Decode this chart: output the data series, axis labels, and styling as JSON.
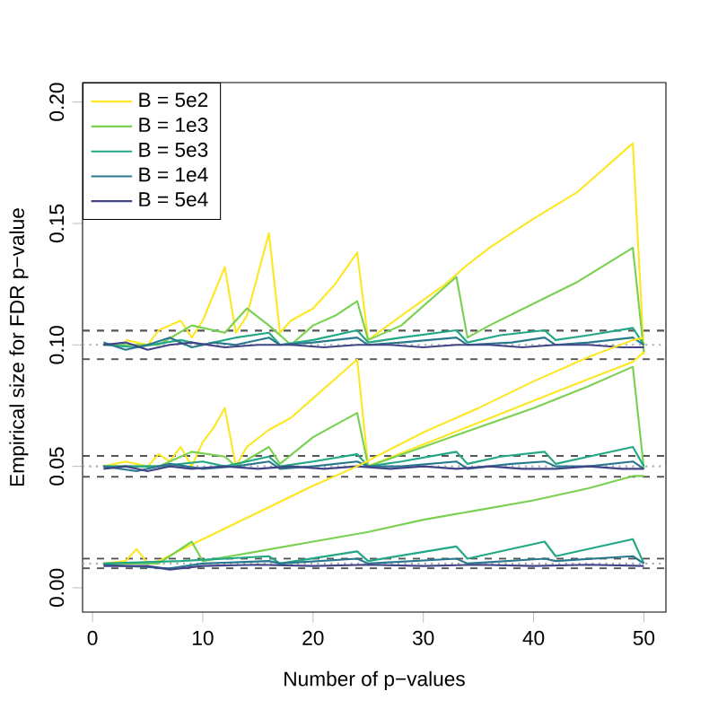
{
  "chart_data": {
    "type": "line",
    "xlabel": "Number of p−values",
    "ylabel": "Empirical size for FDR p−value",
    "xlim": [
      -0.9,
      52
    ],
    "ylim": [
      -0.01,
      0.208
    ],
    "xticks": [
      0,
      10,
      20,
      30,
      40,
      50
    ],
    "yticks": [
      {
        "value": 0,
        "label": "0.00"
      },
      {
        "value": 0.05,
        "label": "0.05"
      },
      {
        "value": 0.1,
        "label": "0.10"
      },
      {
        "value": 0.15,
        "label": "0.15"
      },
      {
        "value": 0.2,
        "label": "0.20"
      }
    ],
    "legend": "top left",
    "marker": "none",
    "ref_lines": [
      {
        "axis": "y",
        "value": 0.1,
        "color": "#aaaaaa",
        "line_style": "dotted"
      },
      {
        "axis": "y",
        "value": 0.0941,
        "color": "#555555",
        "line_style": "dashed"
      },
      {
        "axis": "y",
        "value": 0.1059,
        "color": "#555555",
        "line_style": "dashed"
      },
      {
        "axis": "y",
        "value": 0.05,
        "color": "#aaaaaa",
        "line_style": "dotted"
      },
      {
        "axis": "y",
        "value": 0.0457,
        "color": "#555555",
        "line_style": "dashed"
      },
      {
        "axis": "y",
        "value": 0.0543,
        "color": "#555555",
        "line_style": "dashed"
      },
      {
        "axis": "y",
        "value": 0.01,
        "color": "#aaaaaa",
        "line_style": "dotted"
      },
      {
        "axis": "y",
        "value": 0.008,
        "color": "#555555",
        "line_style": "dashed"
      },
      {
        "axis": "y",
        "value": 0.012,
        "color": "#555555",
        "line_style": "dashed"
      }
    ],
    "series": [
      {
        "name": "B = 5e2",
        "color": "#fde725",
        "x": [
          3,
          5,
          6,
          8,
          9,
          10,
          12,
          13,
          14,
          16,
          17,
          18,
          20,
          22,
          24,
          25,
          28,
          32,
          34,
          36,
          40,
          44,
          49,
          50
        ],
        "values": [
          0.102,
          0.1,
          0.106,
          0.11,
          0.103,
          0.11,
          0.132,
          0.105,
          0.112,
          0.146,
          0.105,
          0.11,
          0.115,
          0.125,
          0.138,
          0.102,
          0.112,
          0.125,
          0.133,
          0.14,
          0.152,
          0.163,
          0.183,
          0.096
        ]
      },
      {
        "name": "B = 1e3",
        "color": "#7ad151",
        "x": [
          1,
          6,
          9,
          12,
          14,
          16,
          18,
          20,
          22,
          24,
          25,
          28,
          33,
          34,
          36,
          40,
          44,
          49,
          50
        ],
        "values": [
          0.1,
          0.1,
          0.108,
          0.105,
          0.115,
          0.108,
          0.1,
          0.108,
          0.112,
          0.118,
          0.102,
          0.108,
          0.128,
          0.103,
          0.108,
          0.117,
          0.126,
          0.14,
          0.097
        ]
      },
      {
        "name": "B = 5e3",
        "color": "#22a884",
        "x": [
          1,
          4,
          8,
          10,
          13,
          16,
          17,
          20,
          24,
          25,
          28,
          33,
          34,
          37,
          41,
          42,
          45,
          49,
          50
        ],
        "values": [
          0.1,
          0.099,
          0.102,
          0.1,
          0.103,
          0.105,
          0.1,
          0.102,
          0.106,
          0.101,
          0.103,
          0.106,
          0.101,
          0.104,
          0.106,
          0.102,
          0.104,
          0.107,
          0.1
        ]
      },
      {
        "name": "B = 1e4",
        "color": "#2a788e",
        "x": [
          1,
          3,
          5,
          7,
          9,
          11,
          13,
          16,
          17,
          20,
          24,
          25,
          28,
          33,
          34,
          38,
          41,
          42,
          45,
          49,
          50
        ],
        "values": [
          0.101,
          0.098,
          0.1,
          0.103,
          0.099,
          0.101,
          0.1,
          0.103,
          0.1,
          0.101,
          0.103,
          0.1,
          0.101,
          0.103,
          0.1,
          0.101,
          0.103,
          0.1,
          0.101,
          0.103,
          0.1
        ]
      },
      {
        "name": "B = 5e4",
        "color": "#414487",
        "x": [
          1,
          3,
          5,
          7,
          9,
          12,
          15,
          18,
          21,
          24,
          27,
          30,
          33,
          36,
          39,
          42,
          45,
          48,
          50
        ],
        "values": [
          0.1,
          0.101,
          0.098,
          0.1,
          0.101,
          0.099,
          0.1,
          0.1,
          0.099,
          0.1,
          0.1,
          0.099,
          0.1,
          0.1,
          0.099,
          0.1,
          0.1,
          0.099,
          0.099
        ]
      },
      {
        "color": "#fde725",
        "x": [
          1,
          3,
          5,
          6,
          7,
          8,
          9,
          10,
          11,
          12,
          13,
          14,
          16,
          18,
          20,
          22,
          24,
          25,
          30,
          35,
          40,
          45,
          49,
          50
        ],
        "values": [
          0.05,
          0.052,
          0.05,
          0.055,
          0.052,
          0.058,
          0.05,
          0.06,
          0.066,
          0.074,
          0.05,
          0.058,
          0.065,
          0.07,
          0.078,
          0.086,
          0.094,
          0.05,
          0.059,
          0.068,
          0.077,
          0.086,
          0.093,
          0.097
        ]
      },
      {
        "color": "#7ad151",
        "x": [
          1,
          6,
          9,
          12,
          13,
          16,
          17,
          20,
          24,
          25,
          30,
          35,
          40,
          45,
          49,
          50
        ],
        "values": [
          0.05,
          0.05,
          0.056,
          0.054,
          0.05,
          0.058,
          0.051,
          0.062,
          0.072,
          0.05,
          0.058,
          0.066,
          0.074,
          0.083,
          0.091,
          0.049
        ]
      },
      {
        "color": "#22a884",
        "x": [
          1,
          6,
          10,
          12,
          16,
          17,
          20,
          24,
          25,
          28,
          33,
          34,
          37,
          41,
          42,
          45,
          49,
          50
        ],
        "values": [
          0.05,
          0.05,
          0.052,
          0.05,
          0.054,
          0.05,
          0.052,
          0.055,
          0.05,
          0.052,
          0.056,
          0.051,
          0.054,
          0.056,
          0.051,
          0.054,
          0.058,
          0.05
        ]
      },
      {
        "color": "#2a788e",
        "x": [
          1,
          4,
          7,
          10,
          13,
          16,
          17,
          20,
          24,
          25,
          28,
          33,
          34,
          38,
          41,
          42,
          45,
          49,
          50
        ],
        "values": [
          0.05,
          0.048,
          0.051,
          0.049,
          0.05,
          0.052,
          0.049,
          0.05,
          0.052,
          0.05,
          0.05,
          0.052,
          0.049,
          0.051,
          0.052,
          0.05,
          0.05,
          0.052,
          0.049
        ]
      },
      {
        "color": "#414487",
        "x": [
          1,
          3,
          5,
          7,
          9,
          12,
          15,
          18,
          21,
          24,
          27,
          30,
          33,
          36,
          39,
          42,
          45,
          48,
          50
        ],
        "values": [
          0.049,
          0.05,
          0.048,
          0.05,
          0.049,
          0.05,
          0.049,
          0.05,
          0.049,
          0.05,
          0.049,
          0.05,
          0.049,
          0.05,
          0.049,
          0.049,
          0.05,
          0.049,
          0.049
        ]
      },
      {
        "color": "#fde725",
        "x": [
          1,
          3,
          4,
          5,
          6,
          10,
          15,
          20,
          24,
          30,
          35,
          40,
          45,
          49,
          50
        ],
        "values": [
          0.01,
          0.011,
          0.016,
          0.01,
          0.011,
          0.02,
          0.031,
          0.042,
          0.05,
          0.064,
          0.074,
          0.085,
          0.095,
          0.102,
          0.103
        ]
      },
      {
        "color": "#7ad151",
        "x": [
          1,
          6,
          9,
          10,
          15,
          20,
          25,
          30,
          35,
          40,
          45,
          49,
          50
        ],
        "values": [
          0.01,
          0.01,
          0.019,
          0.011,
          0.015,
          0.019,
          0.023,
          0.028,
          0.032,
          0.036,
          0.041,
          0.046,
          0.046
        ]
      },
      {
        "color": "#22a884",
        "x": [
          1,
          8,
          16,
          17,
          24,
          25,
          33,
          34,
          41,
          42,
          49,
          50
        ],
        "values": [
          0.01,
          0.011,
          0.013,
          0.01,
          0.015,
          0.011,
          0.017,
          0.012,
          0.019,
          0.013,
          0.02,
          0.01
        ]
      },
      {
        "color": "#2a788e",
        "x": [
          1,
          7,
          10,
          16,
          17,
          24,
          25,
          33,
          34,
          41,
          42,
          49,
          50
        ],
        "values": [
          0.0095,
          0.008,
          0.01,
          0.011,
          0.01,
          0.012,
          0.01,
          0.012,
          0.01,
          0.012,
          0.011,
          0.013,
          0.01
        ]
      },
      {
        "color": "#414487",
        "x": [
          1,
          5,
          7,
          10,
          15,
          20,
          25,
          30,
          35,
          40,
          45,
          50
        ],
        "values": [
          0.009,
          0.009,
          0.0075,
          0.009,
          0.0095,
          0.009,
          0.0095,
          0.009,
          0.0095,
          0.009,
          0.0095,
          0.009
        ]
      }
    ]
  }
}
